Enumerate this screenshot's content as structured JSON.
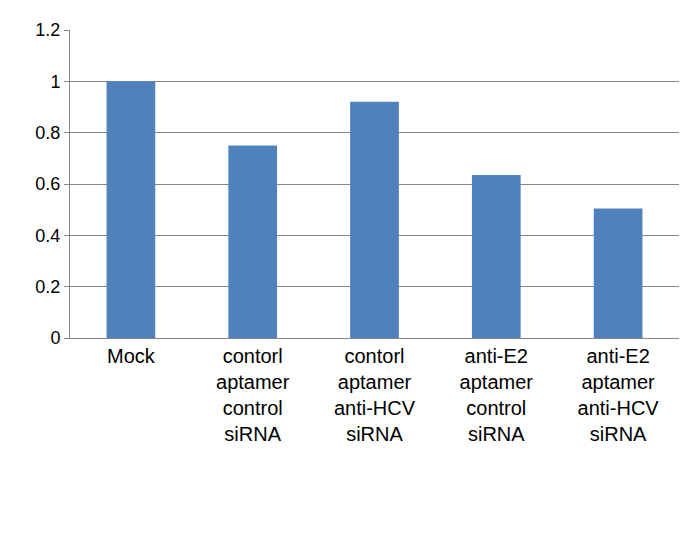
{
  "chart_data": {
    "type": "bar",
    "categories": [
      "Mock",
      "contorl aptamer control siRNA",
      "contorl aptamer anti-HCV siRNA",
      "anti-E2 aptamer control siRNA",
      "anti-E2 aptamer anti-HCV siRNA"
    ],
    "values": [
      1.0,
      0.75,
      0.92,
      0.635,
      0.505
    ],
    "color": "#4f81bd",
    "ylim": [
      0,
      1.2
    ],
    "yticks": [
      0,
      0.2,
      0.4,
      0.6,
      0.8,
      1,
      1.2
    ],
    "grid": true
  }
}
